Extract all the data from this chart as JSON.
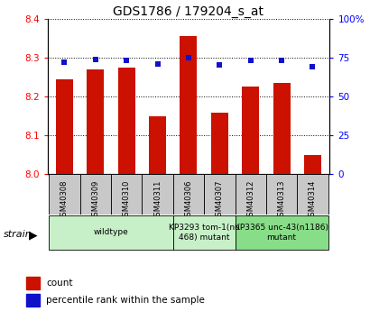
{
  "title": "GDS1786 / 179204_s_at",
  "samples": [
    "GSM40308",
    "GSM40309",
    "GSM40310",
    "GSM40311",
    "GSM40306",
    "GSM40307",
    "GSM40312",
    "GSM40313",
    "GSM40314"
  ],
  "counts": [
    8.245,
    8.27,
    8.275,
    8.148,
    8.355,
    8.158,
    8.225,
    8.235,
    8.05
  ],
  "percentiles": [
    72,
    74,
    73,
    71,
    75,
    70,
    73,
    73,
    69
  ],
  "ylim_left": [
    8.0,
    8.4
  ],
  "ylim_right": [
    0,
    100
  ],
  "yticks_left": [
    8.0,
    8.1,
    8.2,
    8.3,
    8.4
  ],
  "yticks_right": [
    0,
    25,
    50,
    75,
    100
  ],
  "bar_color": "#cc1100",
  "dot_color": "#1111cc",
  "grid_color": "#000000",
  "group_wildtype_color": "#c8f0c8",
  "group_mutant1_color": "#c8f0c8",
  "group_mutant2_color": "#88dd88",
  "tick_bg_color": "#c8c8c8",
  "legend_count": "count",
  "legend_percentile": "percentile rank within the sample",
  "bar_width": 0.55,
  "title_fontsize": 10
}
